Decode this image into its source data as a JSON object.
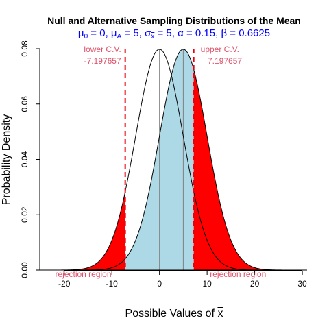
{
  "chart_data": {
    "type": "area",
    "title": "Null and Alternative Sampling Distributions of the Mean",
    "subtitle": {
      "mu0_label": "μ",
      "mu0_sub": "0",
      "mu0_value": "0",
      "muA_label": "μ",
      "muA_sub": "A",
      "muA_value": "5",
      "sigma_label": "σ",
      "sigma_sub": "x",
      "sigma_value": "5",
      "alpha_label": "α",
      "alpha_value": "0.15",
      "beta_label": "β",
      "beta_value": "0.6625"
    },
    "xlabel": "Possible Values of x",
    "ylabel": "Probability Density",
    "xlim": [
      -25,
      31
    ],
    "ylim": [
      0,
      0.08
    ],
    "xticks": [
      -20,
      -10,
      0,
      10,
      20,
      30
    ],
    "yticks": [
      0.0,
      0.02,
      0.04,
      0.06,
      0.08
    ],
    "xtick_labels": [
      "-20",
      "-10",
      "0",
      "10",
      "20",
      "30"
    ],
    "ytick_labels": [
      "0.00",
      "0.02",
      "0.04",
      "0.06",
      "0.08"
    ],
    "series": [
      {
        "name": "null",
        "mean": 0,
        "sd": 5,
        "color": "#000000"
      },
      {
        "name": "alternative",
        "mean": 5,
        "sd": 5,
        "color": "#000000"
      }
    ],
    "critical_values": {
      "lower": -7.197657,
      "upper": 7.197657,
      "lower_label_line1": "lower C.V.",
      "lower_label_line2": "= -7.197657",
      "upper_label_line1": "upper C.V.",
      "upper_label_line2": "= 7.197657",
      "color": "#E8000B"
    },
    "rejection_label": "rejection region",
    "colors": {
      "rejection_fill": "#FF0000",
      "beta_fill": "#ADD8E6",
      "cv_label": "#DF536B",
      "subtitle": "#0000FF",
      "center_line": "#808080"
    }
  }
}
